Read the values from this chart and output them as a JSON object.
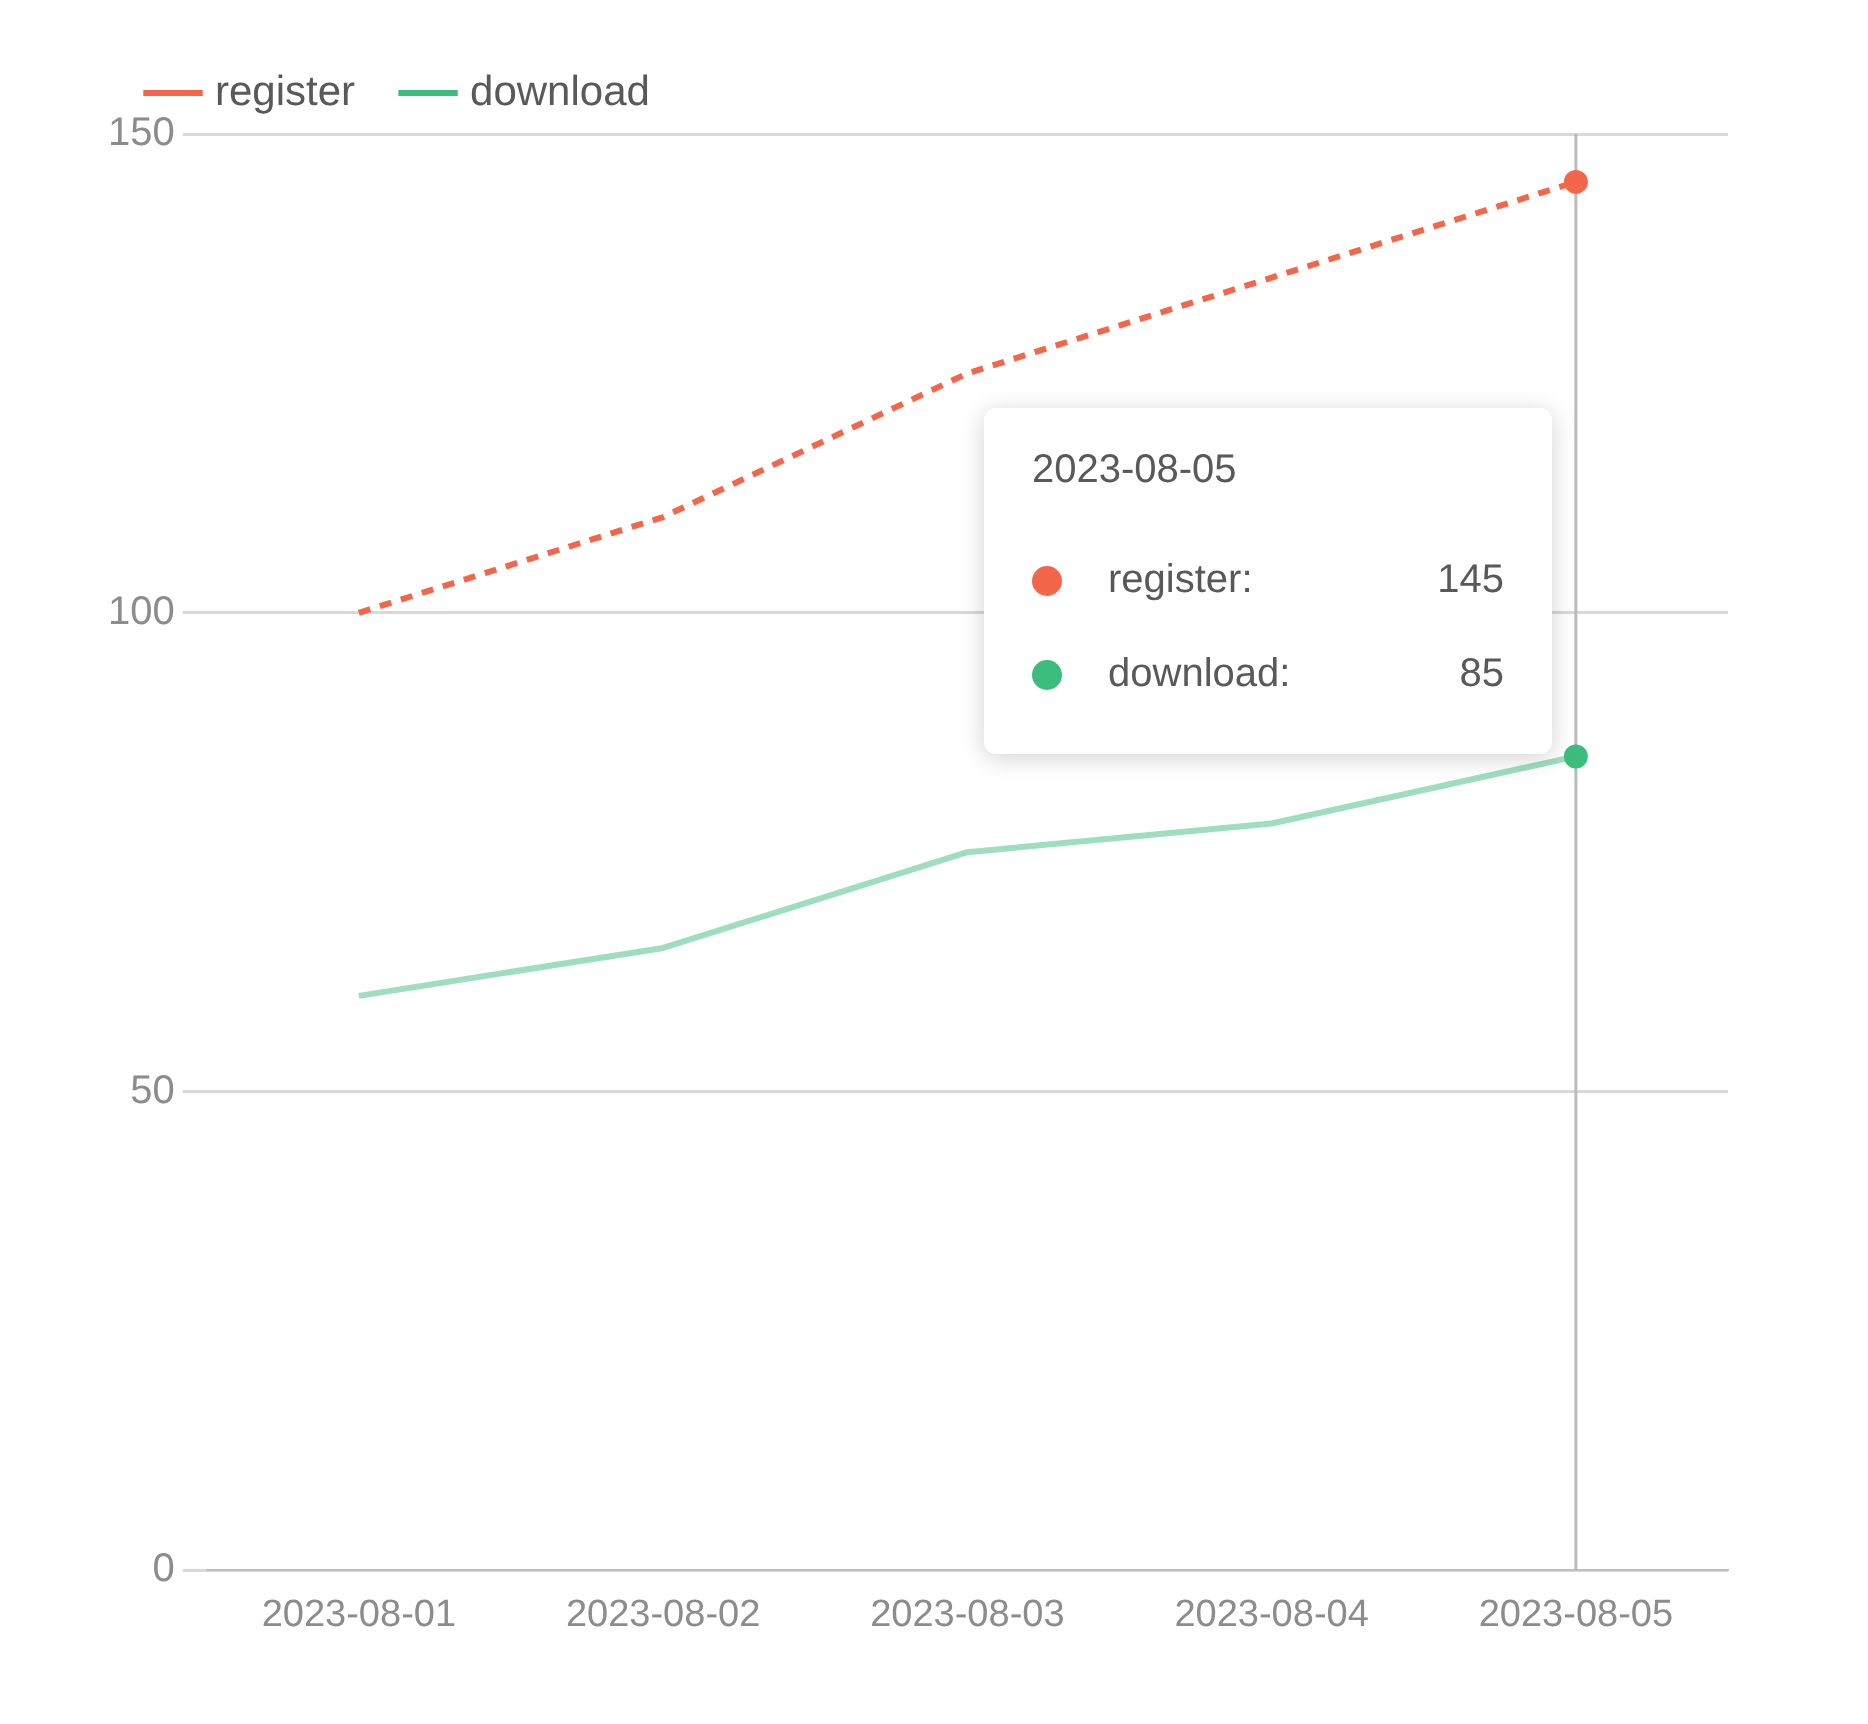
{
  "chart_data": {
    "type": "line",
    "categories": [
      "2023-08-01",
      "2023-08-02",
      "2023-08-03",
      "2023-08-04",
      "2023-08-05"
    ],
    "series": [
      {
        "name": "register",
        "color": "#f4664a",
        "values": [
          100,
          110,
          125,
          135,
          145
        ],
        "line_style": "dashed"
      },
      {
        "name": "download",
        "color": "#3dbd7d",
        "values": [
          60,
          65,
          75,
          78,
          85
        ],
        "line_style": "solid"
      }
    ],
    "ylim": [
      0,
      150
    ],
    "yticks": [
      0,
      50,
      100,
      150
    ],
    "grid": "y",
    "legend": "top left",
    "ref_lines": [
      {
        "axis": "x",
        "value": "2023-08-05",
        "color": "#bbbbbb"
      }
    ],
    "annotations": [
      "2023-08-05",
      "register:",
      "145",
      "download:",
      "85"
    ]
  }
}
